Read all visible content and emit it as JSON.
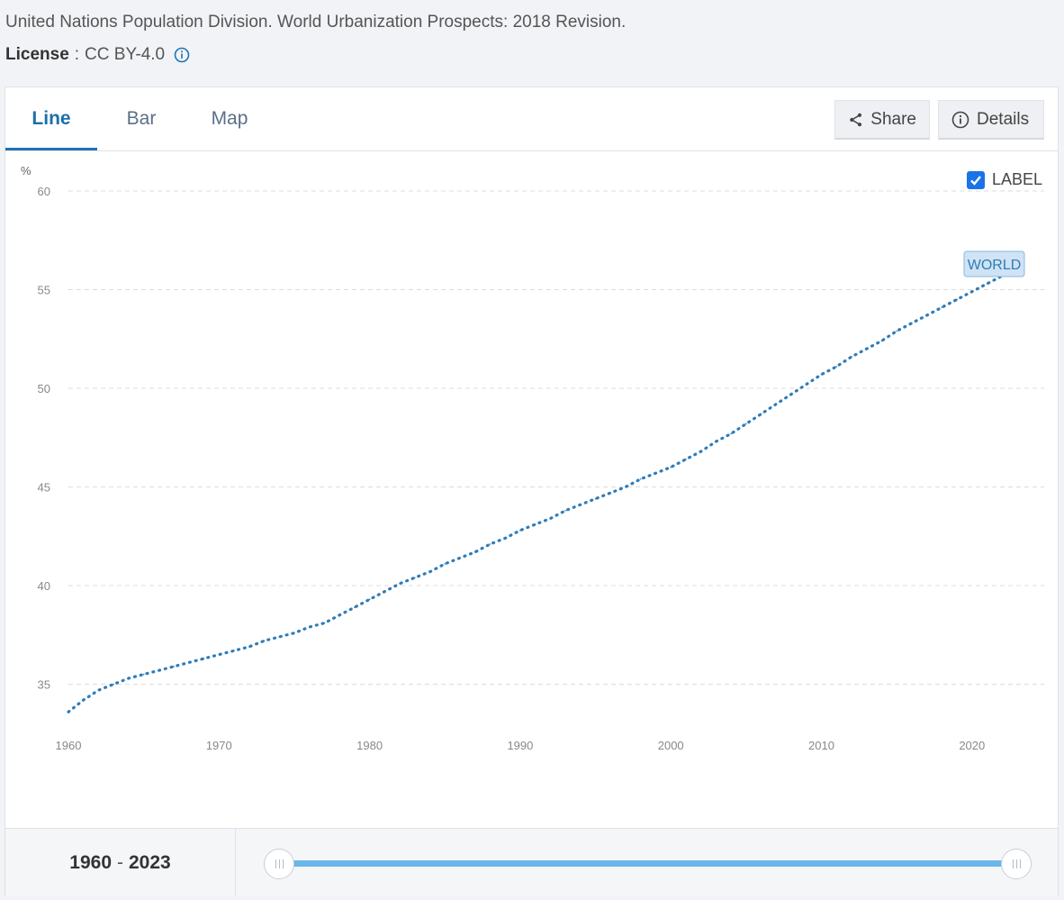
{
  "source": {
    "text": "United Nations Population Division. World Urbanization Prospects: 2018 Revision."
  },
  "license": {
    "key": "License",
    "separator": ":",
    "value": "CC BY-4.0"
  },
  "tabs": [
    {
      "label": "Line",
      "active": true
    },
    {
      "label": "Bar",
      "active": false
    },
    {
      "label": "Map",
      "active": false
    }
  ],
  "toolbar": {
    "share_label": "Share",
    "details_label": "Details"
  },
  "label_toggle": {
    "label": "LABEL",
    "checked": true
  },
  "range": {
    "start": "1960",
    "end": "2023",
    "separator": "-"
  },
  "colors": {
    "series": "#2f7cb8",
    "accent": "#1f73b7",
    "slider": "#6ab7ea",
    "checkbox": "#1a73e8"
  },
  "chart_data": {
    "type": "line",
    "ylabel": "%",
    "xlim": [
      1960,
      2023
    ],
    "ylim": [
      33,
      60
    ],
    "yticks": [
      35,
      40,
      45,
      50,
      55,
      60
    ],
    "xticks": [
      1960,
      1970,
      1980,
      1990,
      2000,
      2010,
      2020
    ],
    "grid": true,
    "line_style": "dotted",
    "series": [
      {
        "name": "WORLD",
        "x": [
          1960,
          1961,
          1962,
          1963,
          1964,
          1965,
          1966,
          1967,
          1968,
          1969,
          1970,
          1971,
          1972,
          1973,
          1974,
          1975,
          1976,
          1977,
          1978,
          1979,
          1980,
          1981,
          1982,
          1983,
          1984,
          1985,
          1986,
          1987,
          1988,
          1989,
          1990,
          1991,
          1992,
          1993,
          1994,
          1995,
          1996,
          1997,
          1998,
          1999,
          2000,
          2001,
          2002,
          2003,
          2004,
          2005,
          2006,
          2007,
          2008,
          2009,
          2010,
          2011,
          2012,
          2013,
          2014,
          2015,
          2016,
          2017,
          2018,
          2019,
          2020,
          2021,
          2022,
          2023
        ],
        "values": [
          33.6,
          34.2,
          34.7,
          35.0,
          35.3,
          35.5,
          35.7,
          35.9,
          36.1,
          36.3,
          36.5,
          36.7,
          36.9,
          37.2,
          37.4,
          37.6,
          37.9,
          38.1,
          38.5,
          38.9,
          39.3,
          39.7,
          40.1,
          40.4,
          40.7,
          41.1,
          41.4,
          41.7,
          42.1,
          42.4,
          42.8,
          43.1,
          43.4,
          43.8,
          44.1,
          44.4,
          44.7,
          45.0,
          45.4,
          45.7,
          46.0,
          46.4,
          46.8,
          47.3,
          47.7,
          48.2,
          48.7,
          49.2,
          49.7,
          50.2,
          50.7,
          51.1,
          51.6,
          52.0,
          52.4,
          52.9,
          53.3,
          53.7,
          54.1,
          54.5,
          54.9,
          55.3,
          55.7,
          56.1
        ]
      }
    ]
  }
}
